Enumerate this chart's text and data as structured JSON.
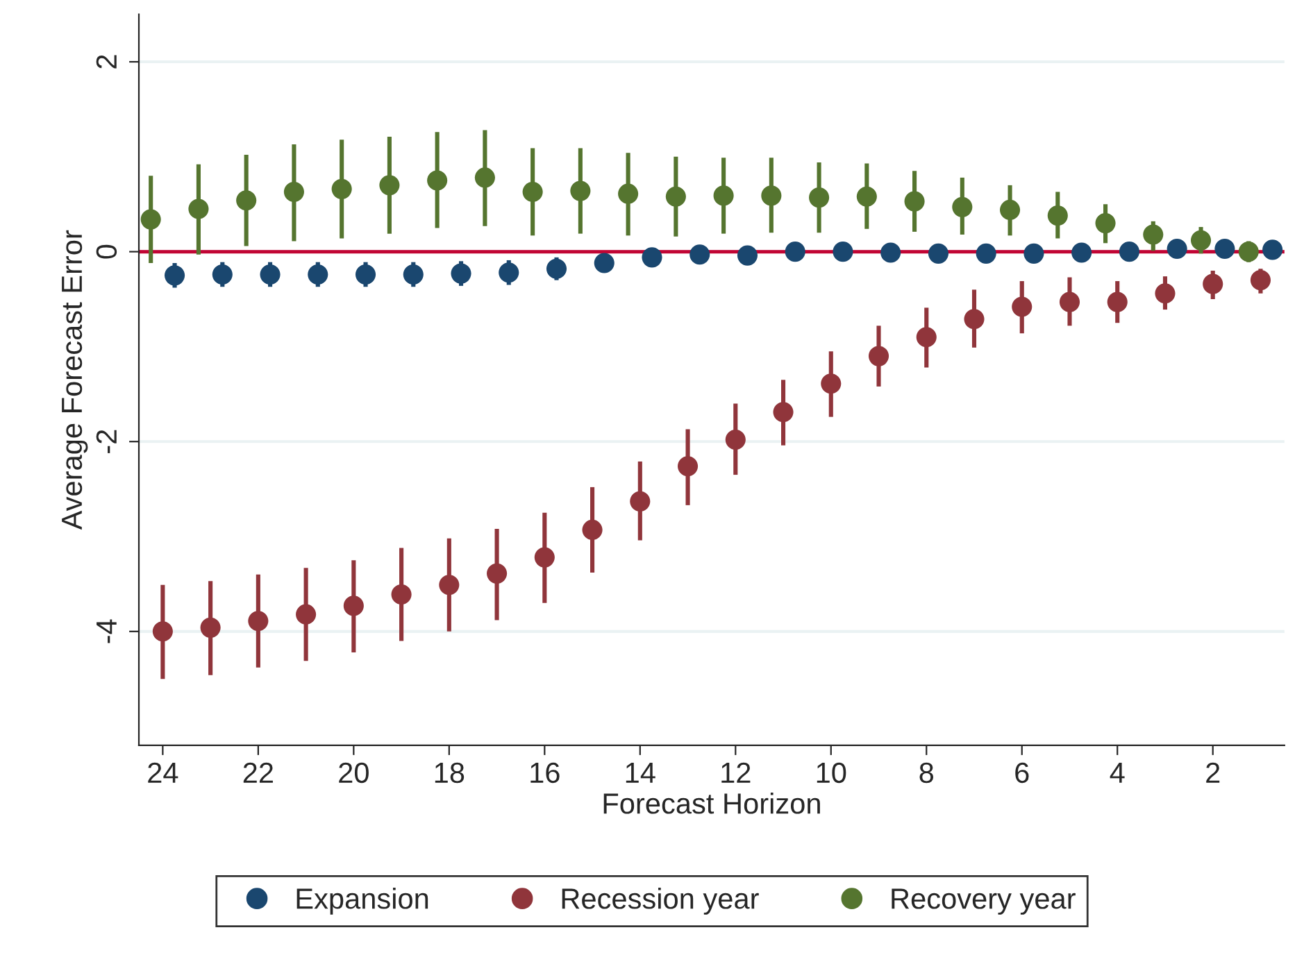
{
  "chart_data": {
    "type": "scatter",
    "xlabel": "Forecast Horizon",
    "ylabel": "Average Forecast Error",
    "xlim": [
      24.5,
      0.5
    ],
    "xticks": [
      24,
      22,
      20,
      18,
      16,
      14,
      12,
      10,
      8,
      6,
      4,
      2
    ],
    "ylim": [
      -5.2,
      2.5
    ],
    "yticks": [
      -4,
      -2,
      0,
      2
    ],
    "grid": "y",
    "legend": "bottom",
    "marker": "circle",
    "ref_lines": [
      {
        "axis": "y",
        "value": 0,
        "color": "#c10534"
      }
    ],
    "series": [
      {
        "name": "Expansion",
        "color": "#1a476f",
        "x": [
          23.75,
          22.75,
          21.75,
          20.75,
          19.75,
          18.75,
          17.75,
          16.75,
          15.75,
          14.75,
          13.75,
          12.75,
          11.75,
          10.75,
          9.75,
          8.75,
          7.75,
          6.75,
          5.75,
          4.75,
          3.75,
          2.75,
          1.75,
          0.75
        ],
        "values": [
          -0.25,
          -0.24,
          -0.24,
          -0.24,
          -0.24,
          -0.24,
          -0.23,
          -0.22,
          -0.18,
          -0.12,
          -0.06,
          -0.03,
          -0.04,
          0.0,
          0.0,
          -0.01,
          -0.02,
          -0.02,
          -0.02,
          -0.01,
          0.0,
          0.03,
          0.03,
          0.02
        ],
        "errors": [
          0.13,
          0.13,
          0.13,
          0.13,
          0.13,
          0.13,
          0.13,
          0.13,
          0.12,
          0.1,
          0.1,
          0.1,
          0.1,
          0.06,
          0.06,
          0.06,
          0.06,
          0.06,
          0.06,
          0.06,
          0.06,
          0.06,
          0.06,
          0.06
        ]
      },
      {
        "name": "Recession year",
        "color": "#90353b",
        "x": [
          24,
          23,
          22,
          21,
          20,
          19,
          18,
          17,
          16,
          15,
          14,
          13,
          12,
          11,
          10,
          9,
          8,
          7,
          6,
          5,
          4,
          3,
          2,
          1
        ],
        "values": [
          -4.0,
          -3.96,
          -3.89,
          -3.82,
          -3.73,
          -3.61,
          -3.51,
          -3.39,
          -3.22,
          -2.93,
          -2.63,
          -2.26,
          -1.98,
          -1.69,
          -1.39,
          -1.1,
          -0.9,
          -0.71,
          -0.58,
          -0.53,
          -0.53,
          -0.44,
          -0.34,
          -0.3
        ],
        "errors": [
          [
            -4.5,
            -3.51
          ],
          [
            -4.46,
            -3.47
          ],
          [
            -4.38,
            -3.4
          ],
          [
            -4.31,
            -3.33
          ],
          [
            -4.22,
            -3.25
          ],
          [
            -4.1,
            -3.12
          ],
          [
            -4.0,
            -3.02
          ],
          [
            -3.88,
            -2.92
          ],
          [
            -3.7,
            -2.75
          ],
          [
            -3.38,
            -2.48
          ],
          [
            -3.04,
            -2.21
          ],
          [
            -2.67,
            -1.87
          ],
          [
            -2.35,
            -1.6
          ],
          [
            -2.04,
            -1.35
          ],
          [
            -1.74,
            -1.05
          ],
          [
            -1.42,
            -0.78
          ],
          [
            -1.22,
            -0.59
          ],
          [
            -1.01,
            -0.4
          ],
          [
            -0.86,
            -0.31
          ],
          [
            -0.78,
            -0.27
          ],
          [
            -0.75,
            -0.31
          ],
          [
            -0.61,
            -0.26
          ],
          [
            -0.5,
            -0.2
          ],
          [
            -0.44,
            -0.18
          ]
        ]
      },
      {
        "name": "Recovery year",
        "color": "#55752f",
        "x": [
          24.25,
          23.25,
          22.25,
          21.25,
          20.25,
          19.25,
          18.25,
          17.25,
          16.25,
          15.25,
          14.25,
          13.25,
          12.25,
          11.25,
          10.25,
          9.25,
          8.25,
          7.25,
          6.25,
          5.25,
          4.25,
          3.25,
          2.25,
          1.25
        ],
        "values": [
          0.34,
          0.45,
          0.54,
          0.63,
          0.66,
          0.7,
          0.75,
          0.78,
          0.63,
          0.64,
          0.61,
          0.58,
          0.59,
          0.59,
          0.57,
          0.58,
          0.53,
          0.47,
          0.44,
          0.38,
          0.3,
          0.18,
          0.12,
          0.0
        ],
        "errors": [
          [
            -0.12,
            0.8
          ],
          [
            -0.03,
            0.92
          ],
          [
            0.06,
            1.02
          ],
          [
            0.11,
            1.13
          ],
          [
            0.14,
            1.18
          ],
          [
            0.19,
            1.21
          ],
          [
            0.25,
            1.26
          ],
          [
            0.27,
            1.28
          ],
          [
            0.17,
            1.09
          ],
          [
            0.19,
            1.09
          ],
          [
            0.17,
            1.04
          ],
          [
            0.16,
            1.0
          ],
          [
            0.19,
            0.99
          ],
          [
            0.2,
            0.99
          ],
          [
            0.2,
            0.94
          ],
          [
            0.24,
            0.93
          ],
          [
            0.21,
            0.85
          ],
          [
            0.18,
            0.78
          ],
          [
            0.17,
            0.7
          ],
          [
            0.14,
            0.63
          ],
          [
            0.09,
            0.5
          ],
          [
            0.01,
            0.32
          ],
          [
            -0.02,
            0.26
          ],
          [
            -0.11,
            0.11
          ]
        ]
      }
    ]
  }
}
